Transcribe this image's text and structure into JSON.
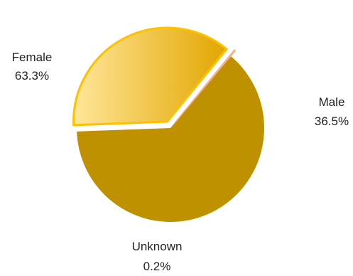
{
  "chart_data": {
    "type": "pie",
    "categories": [
      "Female",
      "Male",
      "Unknown"
    ],
    "values": [
      63.3,
      36.5,
      0.2
    ],
    "value_labels": [
      "63.3%",
      "36.5%",
      "0.2%"
    ],
    "exploded": [
      false,
      true,
      true
    ],
    "start_angle_deg": 40,
    "direction": "clockwise",
    "colors": {
      "Female": "#bf9000",
      "Male_gradient_start": "#ffe699",
      "Male_gradient_end": "#e2a600",
      "Male_outline": "#ffc000",
      "Unknown": "#f4b183"
    },
    "legend": "none",
    "title": ""
  }
}
